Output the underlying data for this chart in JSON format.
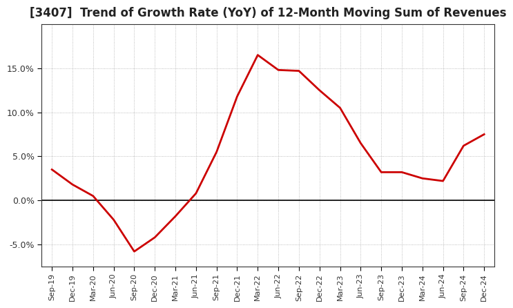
{
  "title": "[3407]  Trend of Growth Rate (YoY) of 12-Month Moving Sum of Revenues",
  "title_fontsize": 12,
  "line_color": "#cc0000",
  "background_color": "#ffffff",
  "grid_color": "#aaaaaa",
  "tick_label_color": "#333333",
  "ylim": [
    -0.075,
    0.2
  ],
  "yticks": [
    -0.05,
    0.0,
    0.05,
    0.1,
    0.15
  ],
  "dates": [
    "Sep-19",
    "Dec-19",
    "Mar-20",
    "Jun-20",
    "Sep-20",
    "Dec-20",
    "Mar-21",
    "Jun-21",
    "Sep-21",
    "Dec-21",
    "Mar-22",
    "Jun-22",
    "Sep-22",
    "Dec-22",
    "Mar-23",
    "Jun-23",
    "Sep-23",
    "Dec-23",
    "Mar-24",
    "Jun-24",
    "Sep-24",
    "Dec-24"
  ],
  "values": [
    0.035,
    0.018,
    0.005,
    -0.022,
    -0.058,
    -0.042,
    -0.018,
    0.008,
    0.055,
    0.118,
    0.165,
    0.148,
    0.147,
    0.125,
    0.105,
    0.065,
    0.032,
    0.032,
    0.025,
    0.022,
    0.062,
    0.075
  ]
}
